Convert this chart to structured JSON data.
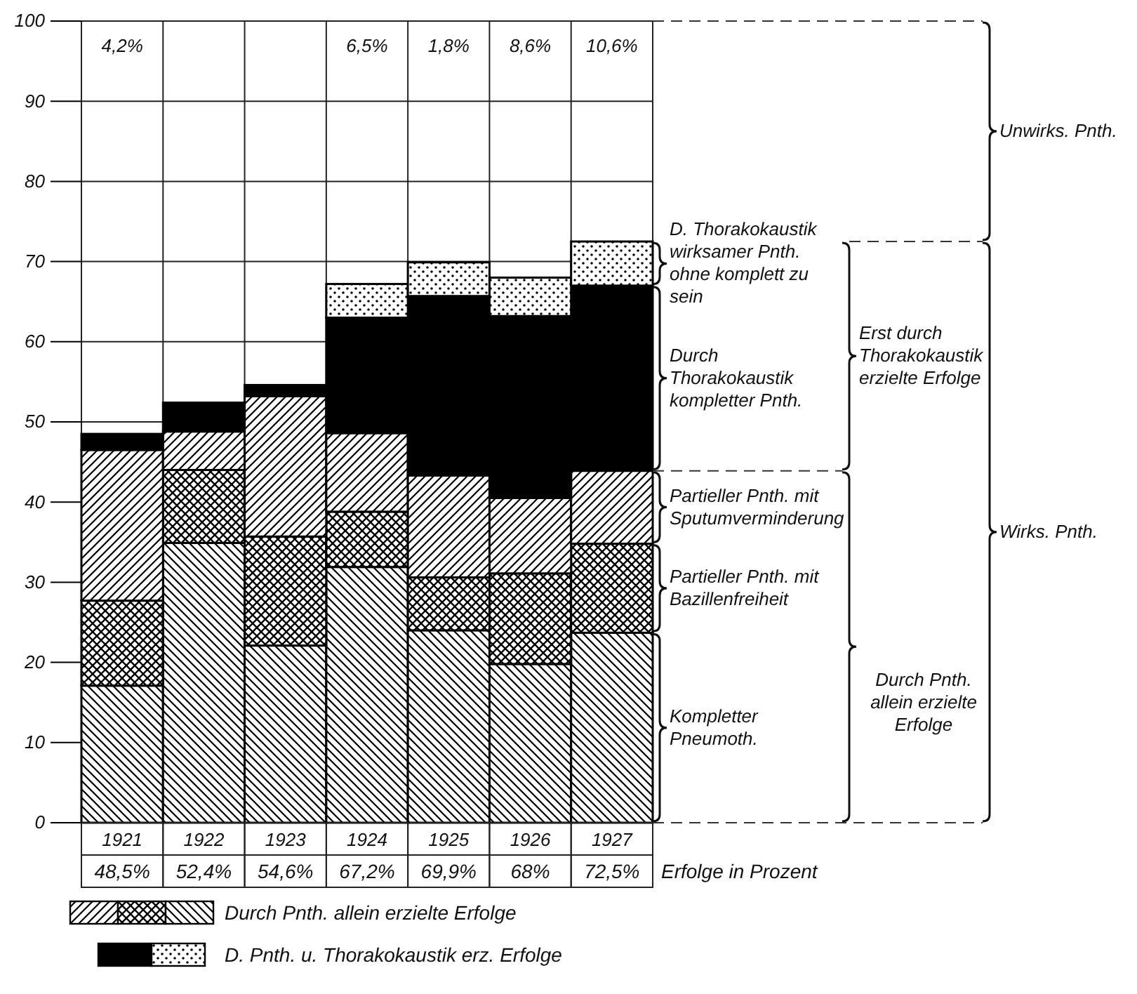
{
  "chart_data": {
    "type": "bar",
    "stacked": true,
    "categories": [
      "1921",
      "1922",
      "1923",
      "1924",
      "1925",
      "1926",
      "1927"
    ],
    "series": [
      {
        "name": "Kompletter Pneumoth.",
        "color": "#000000",
        "values": [
          17.1,
          34.9,
          22.1,
          31.9,
          24.0,
          19.8,
          23.7
        ]
      },
      {
        "name": "Partieller Pnth. mit Bazillenfreiheit",
        "color": "#000000",
        "values": [
          10.6,
          9.1,
          13.6,
          6.9,
          6.6,
          11.3,
          11.1
        ]
      },
      {
        "name": "Partieller Pnth. mit Sputumverminderung",
        "color": "#000000",
        "values": [
          18.8,
          4.8,
          17.5,
          9.8,
          12.7,
          9.4,
          9.1
        ]
      },
      {
        "name": "Durch Thorakokaustik kompletter Pnth.",
        "color": "#000000",
        "values": [
          2.0,
          3.6,
          1.4,
          14.4,
          22.4,
          22.7,
          23.1
        ]
      },
      {
        "name": "D. Thorakokaustik wirksamer Pnth. ohne komplett zu sein",
        "color": "#000000",
        "values": [
          null,
          null,
          null,
          4.2,
          4.2,
          4.8,
          5.5
        ]
      }
    ],
    "totals": [
      "48,5%",
      "52,4%",
      "54,6%",
      "67,2%",
      "69,9%",
      "68%",
      "72,5%"
    ],
    "ylim": [
      0,
      100
    ],
    "yticks": [
      0,
      10,
      20,
      30,
      40,
      50,
      60,
      70,
      80,
      90,
      100
    ],
    "grid": true,
    "annotations": [
      "4,2%",
      "6,5%",
      "1,8%",
      "8,6%",
      "10,6%",
      "Erfolge in Prozent",
      "Erst durch Thorakokaustik erzielte Erfolge",
      "Durch Pnth. allein erzielte Erfolge",
      "Unwirks. Pnth.",
      "Wirks. Pnth.",
      "Durch Pnth. allein erzielte Erfolge",
      "D. Pnth. u. Thorakokaustik erz. Erfolge"
    ]
  }
}
